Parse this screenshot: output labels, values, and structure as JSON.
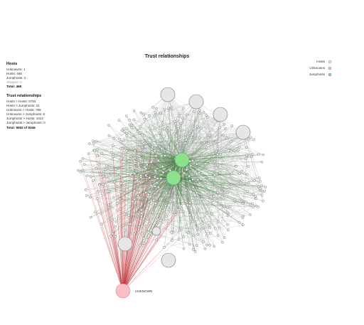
{
  "header": {
    "title": "Trust relationships"
  },
  "hosts": {
    "heading": "Hosts",
    "lines": [
      "Unknowns: 1",
      "Hosts: 465",
      "Jumphosts: 2"
    ],
    "skipped": "Skipped: 0",
    "total": "Total: 468"
  },
  "trust": {
    "heading": "Trust relationships",
    "lines": [
      "Hosts > Hosts: 6753",
      "Hosts > Jumphosts: 21",
      "Unknowns > Hosts: 786",
      "Unknowns > Jumphosts: 8",
      "Jumphosts > Hosts: 1022",
      "Jumphosts > Jumphosts: 0"
    ],
    "total": "Total: 9092 of 9346"
  },
  "legend": {
    "items": [
      "Hosts",
      "Unknowns",
      "Jumphosts"
    ]
  },
  "nodes": {
    "unknown_label": "UNKNOWN"
  }
}
